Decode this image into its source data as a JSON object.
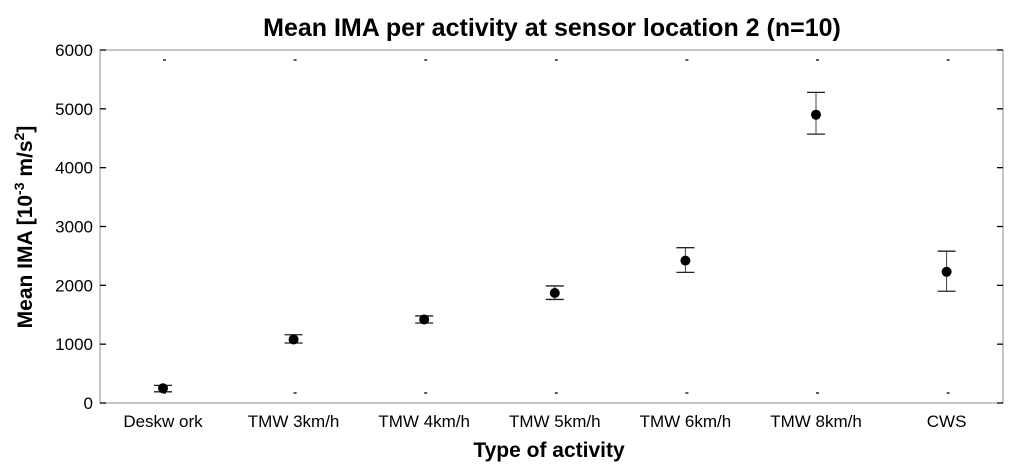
{
  "chart_data": {
    "type": "scatter",
    "title": "Mean IMA per activity at sensor location 2 (n=10)",
    "xlabel": "Type of activity",
    "ylabel_main": "Mean IMA [10",
    "ylabel_exp1": "-3",
    "ylabel_mid": " m/s",
    "ylabel_exp2": "2",
    "ylabel_end": "]",
    "ylim": [
      0,
      6000
    ],
    "yticks": [
      0,
      1000,
      2000,
      3000,
      4000,
      5000,
      6000
    ],
    "ytick_labels": [
      "0",
      "1000",
      "2000",
      "3000",
      "4000",
      "5000",
      "6000"
    ],
    "categories": [
      "Deskw ork",
      "TMW 3km/h",
      "TMW 4km/h",
      "TMW 5km/h",
      "TMW 6km/h",
      "TMW 8km/h",
      "CWS"
    ],
    "values": [
      250,
      1080,
      1420,
      1870,
      2420,
      4900,
      2230
    ],
    "error_low": [
      190,
      1020,
      1360,
      1760,
      2220,
      4570,
      1900
    ],
    "error_high": [
      300,
      1160,
      1480,
      1990,
      2640,
      5280,
      2580
    ],
    "grid": false,
    "legend": "none"
  }
}
